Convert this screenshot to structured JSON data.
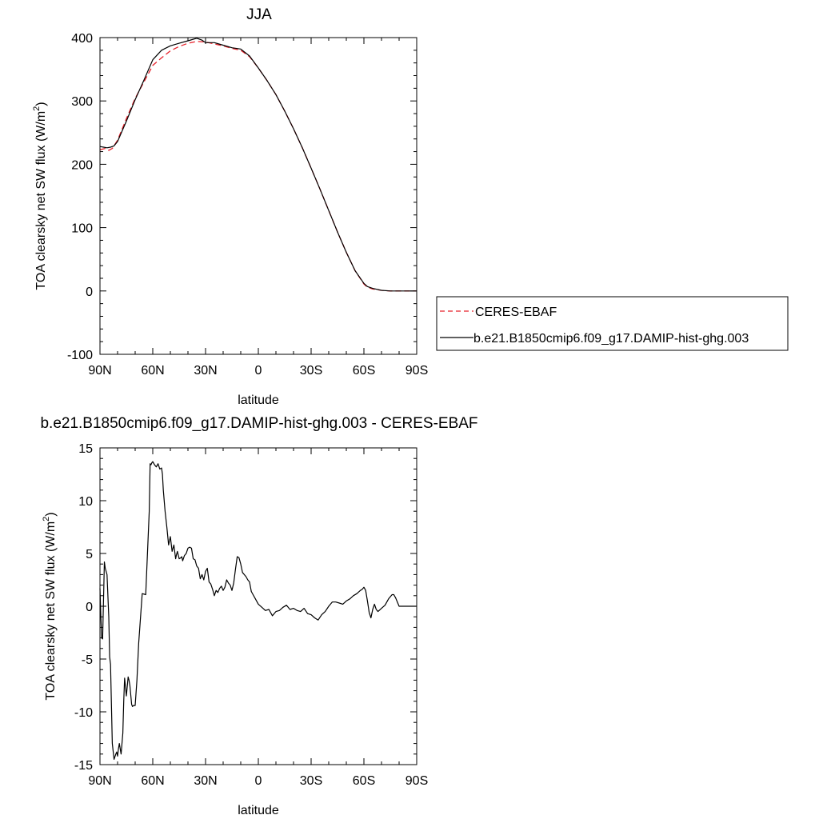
{
  "chart_data": [
    {
      "type": "line",
      "title": "JJA",
      "xlabel": "latitude",
      "ylabel": "TOA clearsky net SW flux (W/m",
      "ylabel_sup": "2",
      "ylabel_tail": ")",
      "xlim": [
        90,
        -90
      ],
      "ylim": [
        -100,
        400
      ],
      "x_ticks": [
        90,
        60,
        30,
        0,
        -30,
        -60,
        -90
      ],
      "x_tick_labels": [
        "90N",
        "60N",
        "30N",
        "0",
        "30S",
        "60S",
        "90S"
      ],
      "y_ticks": [
        -100,
        0,
        100,
        200,
        300,
        400
      ],
      "y_tick_labels": [
        "-100",
        "0",
        "100",
        "200",
        "300",
        "400"
      ],
      "legend": {
        "position": "right",
        "entries": [
          "CERES-EBAF",
          "b.e21.B1850cmip6.f09_g17.DAMIP-hist-ghg.003"
        ]
      },
      "series": [
        {
          "name": "CERES-EBAF",
          "color": "#e8212a",
          "dash": "dashed",
          "x": [
            90,
            87,
            85,
            83,
            80,
            75,
            70,
            65,
            60,
            55,
            50,
            45,
            40,
            35,
            30,
            25,
            20,
            15,
            10,
            5,
            0,
            -5,
            -10,
            -15,
            -20,
            -25,
            -30,
            -35,
            -40,
            -45,
            -50,
            -55,
            -60,
            -62,
            -65,
            -70,
            -75,
            -80,
            -85,
            -90
          ],
          "y": [
            223,
            225,
            222,
            225,
            238,
            272,
            304,
            330,
            356,
            368,
            379,
            386,
            391,
            394,
            393,
            390,
            387,
            383,
            380,
            370,
            352,
            332,
            310,
            284,
            256,
            226,
            194,
            161,
            127,
            93,
            61,
            32,
            11,
            6,
            3,
            1,
            0,
            0,
            0,
            0
          ]
        },
        {
          "name": "b.e21.B1850cmip6.f09_g17.DAMIP-hist-ghg.003",
          "color": "#000000",
          "dash": "solid",
          "x": [
            90,
            88,
            86,
            84,
            82,
            80,
            75,
            70,
            65,
            60,
            55,
            50,
            45,
            40,
            35,
            32,
            30,
            25,
            20,
            15,
            10,
            5,
            0,
            -5,
            -10,
            -15,
            -20,
            -25,
            -30,
            -35,
            -40,
            -45,
            -50,
            -55,
            -60,
            -62,
            -65,
            -70,
            -75,
            -80,
            -85,
            -90
          ],
          "y": [
            228,
            227,
            226,
            227,
            229,
            236,
            268,
            302,
            333,
            365,
            380,
            387,
            391,
            395,
            399,
            396,
            392,
            392,
            388,
            384,
            382,
            371,
            352,
            332,
            310,
            284,
            256,
            226,
            194,
            161,
            127,
            93,
            61,
            32,
            12,
            7,
            4,
            1,
            0,
            0,
            0,
            0
          ]
        }
      ]
    },
    {
      "type": "line",
      "title": "b.e21.B1850cmip6.f09_g17.DAMIP-hist-ghg.003 - CERES-EBAF",
      "xlabel": "latitude",
      "ylabel": "TOA clearsky net SW flux (W/m",
      "ylabel_sup": "2",
      "ylabel_tail": ")",
      "xlim": [
        90,
        -90
      ],
      "ylim": [
        -15,
        15
      ],
      "x_ticks": [
        90,
        60,
        30,
        0,
        -30,
        -60,
        -90
      ],
      "x_tick_labels": [
        "90N",
        "60N",
        "30N",
        "0",
        "30S",
        "60S",
        "90S"
      ],
      "y_ticks": [
        -15,
        -10,
        -5,
        0,
        5,
        10,
        15
      ],
      "y_tick_labels": [
        "-15",
        "-10",
        "-5",
        "0",
        "5",
        "10",
        "15"
      ],
      "series": [
        {
          "color": "#000000",
          "dash": "solid",
          "x": [
            90,
            89.5,
            89,
            88.5,
            88,
            87.5,
            87,
            86,
            85,
            84.5,
            84,
            83,
            82,
            81,
            80.5,
            80,
            79.5,
            79,
            78,
            77,
            76.5,
            76,
            75,
            74,
            73.5,
            73,
            72,
            71.5,
            71,
            70,
            69,
            68,
            66,
            64,
            62,
            61.5,
            61,
            60.5,
            60,
            59,
            58,
            57,
            56,
            55,
            54.5,
            54,
            53,
            52,
            51,
            50,
            49,
            48,
            47,
            46.5,
            46,
            45,
            44,
            43.5,
            43,
            42,
            41,
            40,
            39,
            38,
            37,
            36,
            35,
            34,
            33,
            32,
            31,
            30,
            29,
            28,
            27,
            26,
            25,
            24,
            23,
            22,
            21,
            20,
            19,
            18,
            17,
            16,
            15,
            14,
            13,
            12,
            11,
            10,
            9,
            8,
            7,
            6,
            5,
            4,
            3,
            2,
            1,
            0,
            -2,
            -4,
            -6,
            -8,
            -10,
            -12,
            -14,
            -16,
            -18,
            -20,
            -22,
            -24,
            -26,
            -28,
            -30,
            -32,
            -34,
            -36,
            -38,
            -40,
            -42,
            -44,
            -46,
            -48,
            -50,
            -52,
            -54,
            -56,
            -58,
            -59,
            -60,
            -61,
            -62,
            -63,
            -64,
            -65,
            -66,
            -67,
            -68,
            -70,
            -72,
            -74,
            -76,
            -77,
            -78,
            -80,
            -82,
            -84,
            -86,
            -88,
            -90
          ],
          "y": [
            1.7,
            -1,
            -3.0,
            -3.1,
            0.5,
            4.2,
            3.6,
            3.0,
            -1,
            -4.8,
            -5.5,
            -13,
            -14.5,
            -14.0,
            -13.8,
            -14.2,
            -13.5,
            -13.0,
            -14.0,
            -12,
            -9.0,
            -6.8,
            -8.5,
            -6.7,
            -7.0,
            -7.5,
            -9.3,
            -9.5,
            -9.4,
            -9.4,
            -7,
            -3.5,
            1.2,
            1.1,
            9,
            13.5,
            13.4,
            13.6,
            13.7,
            13.4,
            13.2,
            13.5,
            13.0,
            13.1,
            12.5,
            11,
            9,
            7.5,
            5.8,
            6.6,
            5.2,
            5.8,
            4.5,
            4.9,
            5.2,
            4.5,
            4.6,
            4.7,
            4.3,
            4.8,
            5.0,
            5.5,
            5.6,
            5.5,
            4.5,
            4.4,
            3.8,
            3.6,
            2.6,
            3.0,
            2.5,
            3.3,
            3.6,
            2.3,
            2.1,
            1.6,
            1.0,
            1.5,
            1.3,
            1.7,
            1.9,
            1.5,
            1.8,
            2.5,
            2.2,
            2.0,
            1.5,
            2.2,
            3.5,
            4.7,
            4.6,
            4.0,
            3.2,
            3.0,
            2.8,
            2.5,
            2.3,
            1.4,
            1.1,
            0.8,
            0.5,
            0.2,
            -0.1,
            -0.4,
            -0.3,
            -0.9,
            -0.5,
            -0.4,
            -0.1,
            0.1,
            -0.3,
            -0.2,
            -0.4,
            -0.5,
            -0.2,
            -0.7,
            -0.8,
            -1.1,
            -1.3,
            -0.8,
            -0.5,
            0.0,
            0.4,
            0.4,
            0.3,
            0.2,
            0.5,
            0.7,
            1.0,
            1.2,
            1.5,
            1.6,
            1.8,
            1.5,
            0.5,
            -0.6,
            -1.1,
            -0.3,
            0.2,
            -0.3,
            -0.5,
            -0.2,
            0.1,
            0.7,
            1.1,
            1.1,
            0.8,
            0.0,
            0.0,
            0.0,
            0.0,
            0.0,
            0.0
          ]
        }
      ]
    }
  ]
}
